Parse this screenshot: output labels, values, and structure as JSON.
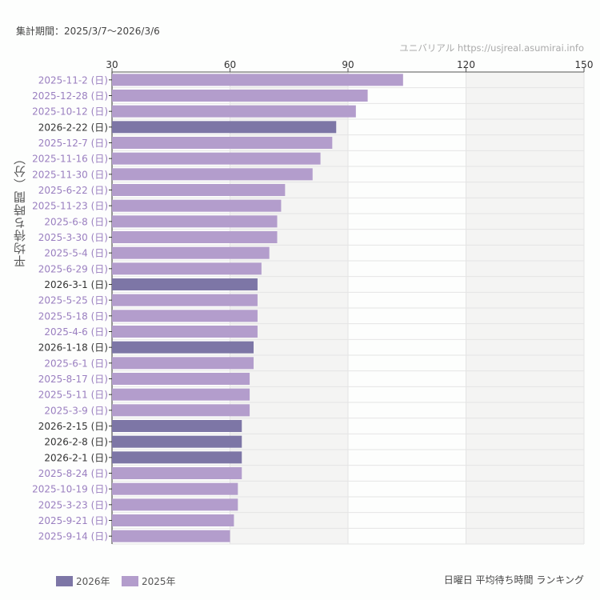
{
  "header": {
    "period": "集計期間：2025/3/7〜2026/3/6",
    "site": "ユニバリアル  https://usjreal.asumirai.info"
  },
  "footer": {
    "title": "日曜日 平均待ち時間 ランキング"
  },
  "colors": {
    "2026": "#7d76a6",
    "2025": "#b39dcc",
    "label2025": "#9a7fc0",
    "label2026": "#333333"
  },
  "chart_data": {
    "type": "bar",
    "orientation": "horizontal",
    "ylabel": "平均待ち時間（分）",
    "xlim": [
      30,
      150
    ],
    "xticks": [
      "30",
      "60",
      "90",
      "120",
      "150"
    ],
    "grid": true,
    "legend_position": "bottom-left",
    "legend": [
      {
        "name": "2026年",
        "key": "2026"
      },
      {
        "name": "2025年",
        "key": "2025"
      }
    ],
    "categories": [
      "2025-11-2 (日)",
      "2025-12-28 (日)",
      "2025-10-12 (日)",
      "2026-2-22 (日)",
      "2025-12-7 (日)",
      "2025-11-16 (日)",
      "2025-11-30 (日)",
      "2025-6-22 (日)",
      "2025-11-23 (日)",
      "2025-6-8 (日)",
      "2025-3-30 (日)",
      "2025-5-4 (日)",
      "2025-6-29 (日)",
      "2026-3-1 (日)",
      "2025-5-25 (日)",
      "2025-5-18 (日)",
      "2025-4-6 (日)",
      "2026-1-18 (日)",
      "2025-6-1 (日)",
      "2025-8-17 (日)",
      "2025-5-11 (日)",
      "2025-3-9 (日)",
      "2026-2-15 (日)",
      "2026-2-8 (日)",
      "2026-2-1 (日)",
      "2025-8-24 (日)",
      "2025-10-19 (日)",
      "2025-3-23 (日)",
      "2025-9-21 (日)",
      "2025-9-14 (日)"
    ],
    "values": [
      104,
      95,
      92,
      87,
      86,
      83,
      81,
      74,
      73,
      72,
      72,
      70,
      68,
      67,
      67,
      67,
      67,
      66,
      66,
      65,
      65,
      65,
      63,
      63,
      63,
      63,
      62,
      62,
      61,
      60
    ]
  }
}
